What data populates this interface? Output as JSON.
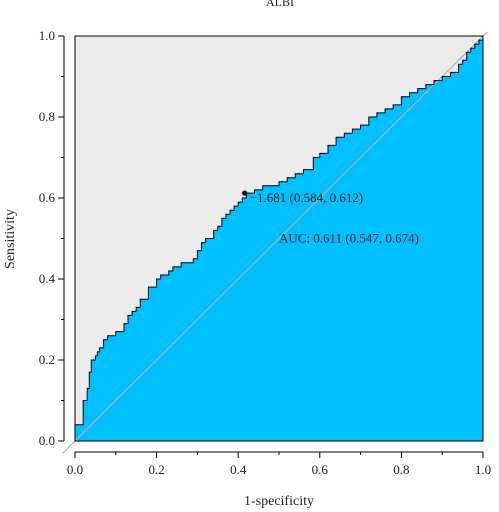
{
  "chart_data": {
    "type": "line",
    "subtype": "roc",
    "title": "ALBI",
    "xlabel": "1-specificity",
    "ylabel": "Sensitivity",
    "xlim": [
      0,
      1
    ],
    "ylim": [
      0,
      1
    ],
    "xticks": [
      "0.0",
      "0.2",
      "0.4",
      "0.6",
      "0.8",
      "1.0"
    ],
    "yticks": [
      "0.0",
      "0.2",
      "0.4",
      "0.6",
      "0.8",
      "1.0"
    ],
    "grid": false,
    "colors": {
      "auc_fill": "#00bfff",
      "upper_fill": "#ebebeb",
      "curve": "#000000",
      "diagonal": "#b0b0b0",
      "point": "#000000"
    },
    "curve": {
      "x": [
        0.0,
        0.0,
        0.02,
        0.02,
        0.03,
        0.035,
        0.04,
        0.05,
        0.055,
        0.06,
        0.07,
        0.08,
        0.09,
        0.1,
        0.12,
        0.13,
        0.14,
        0.15,
        0.16,
        0.18,
        0.19,
        0.2,
        0.21,
        0.23,
        0.24,
        0.26,
        0.27,
        0.29,
        0.3,
        0.31,
        0.32,
        0.33,
        0.34,
        0.35,
        0.36,
        0.37,
        0.38,
        0.39,
        0.4,
        0.41,
        0.42,
        0.42,
        0.44,
        0.46,
        0.48,
        0.5,
        0.52,
        0.54,
        0.56,
        0.584,
        0.6,
        0.62,
        0.64,
        0.66,
        0.68,
        0.7,
        0.72,
        0.74,
        0.76,
        0.78,
        0.8,
        0.82,
        0.84,
        0.86,
        0.88,
        0.9,
        0.92,
        0.94,
        0.95,
        0.96,
        0.97,
        0.98,
        0.99,
        1.0
      ],
      "y": [
        0.0,
        0.04,
        0.04,
        0.1,
        0.13,
        0.17,
        0.2,
        0.21,
        0.22,
        0.23,
        0.25,
        0.26,
        0.26,
        0.27,
        0.29,
        0.31,
        0.32,
        0.33,
        0.35,
        0.38,
        0.38,
        0.4,
        0.41,
        0.42,
        0.43,
        0.44,
        0.44,
        0.45,
        0.47,
        0.49,
        0.5,
        0.5,
        0.52,
        0.53,
        0.55,
        0.56,
        0.57,
        0.58,
        0.59,
        0.6,
        0.61,
        0.612,
        0.62,
        0.63,
        0.63,
        0.64,
        0.65,
        0.66,
        0.67,
        0.7,
        0.71,
        0.73,
        0.75,
        0.76,
        0.77,
        0.78,
        0.8,
        0.81,
        0.82,
        0.83,
        0.85,
        0.86,
        0.87,
        0.88,
        0.89,
        0.9,
        0.91,
        0.93,
        0.94,
        0.96,
        0.97,
        0.98,
        0.99,
        1.0
      ]
    },
    "optimal_point": {
      "x": 0.416,
      "y": 0.612,
      "label": "−1.681 (0.584, 0.612)"
    },
    "annotations": {
      "auc_text": "AUC: 0.611 (0.547, 0.674)",
      "auc_text_x": 0.5,
      "auc_text_y": 0.49
    }
  }
}
